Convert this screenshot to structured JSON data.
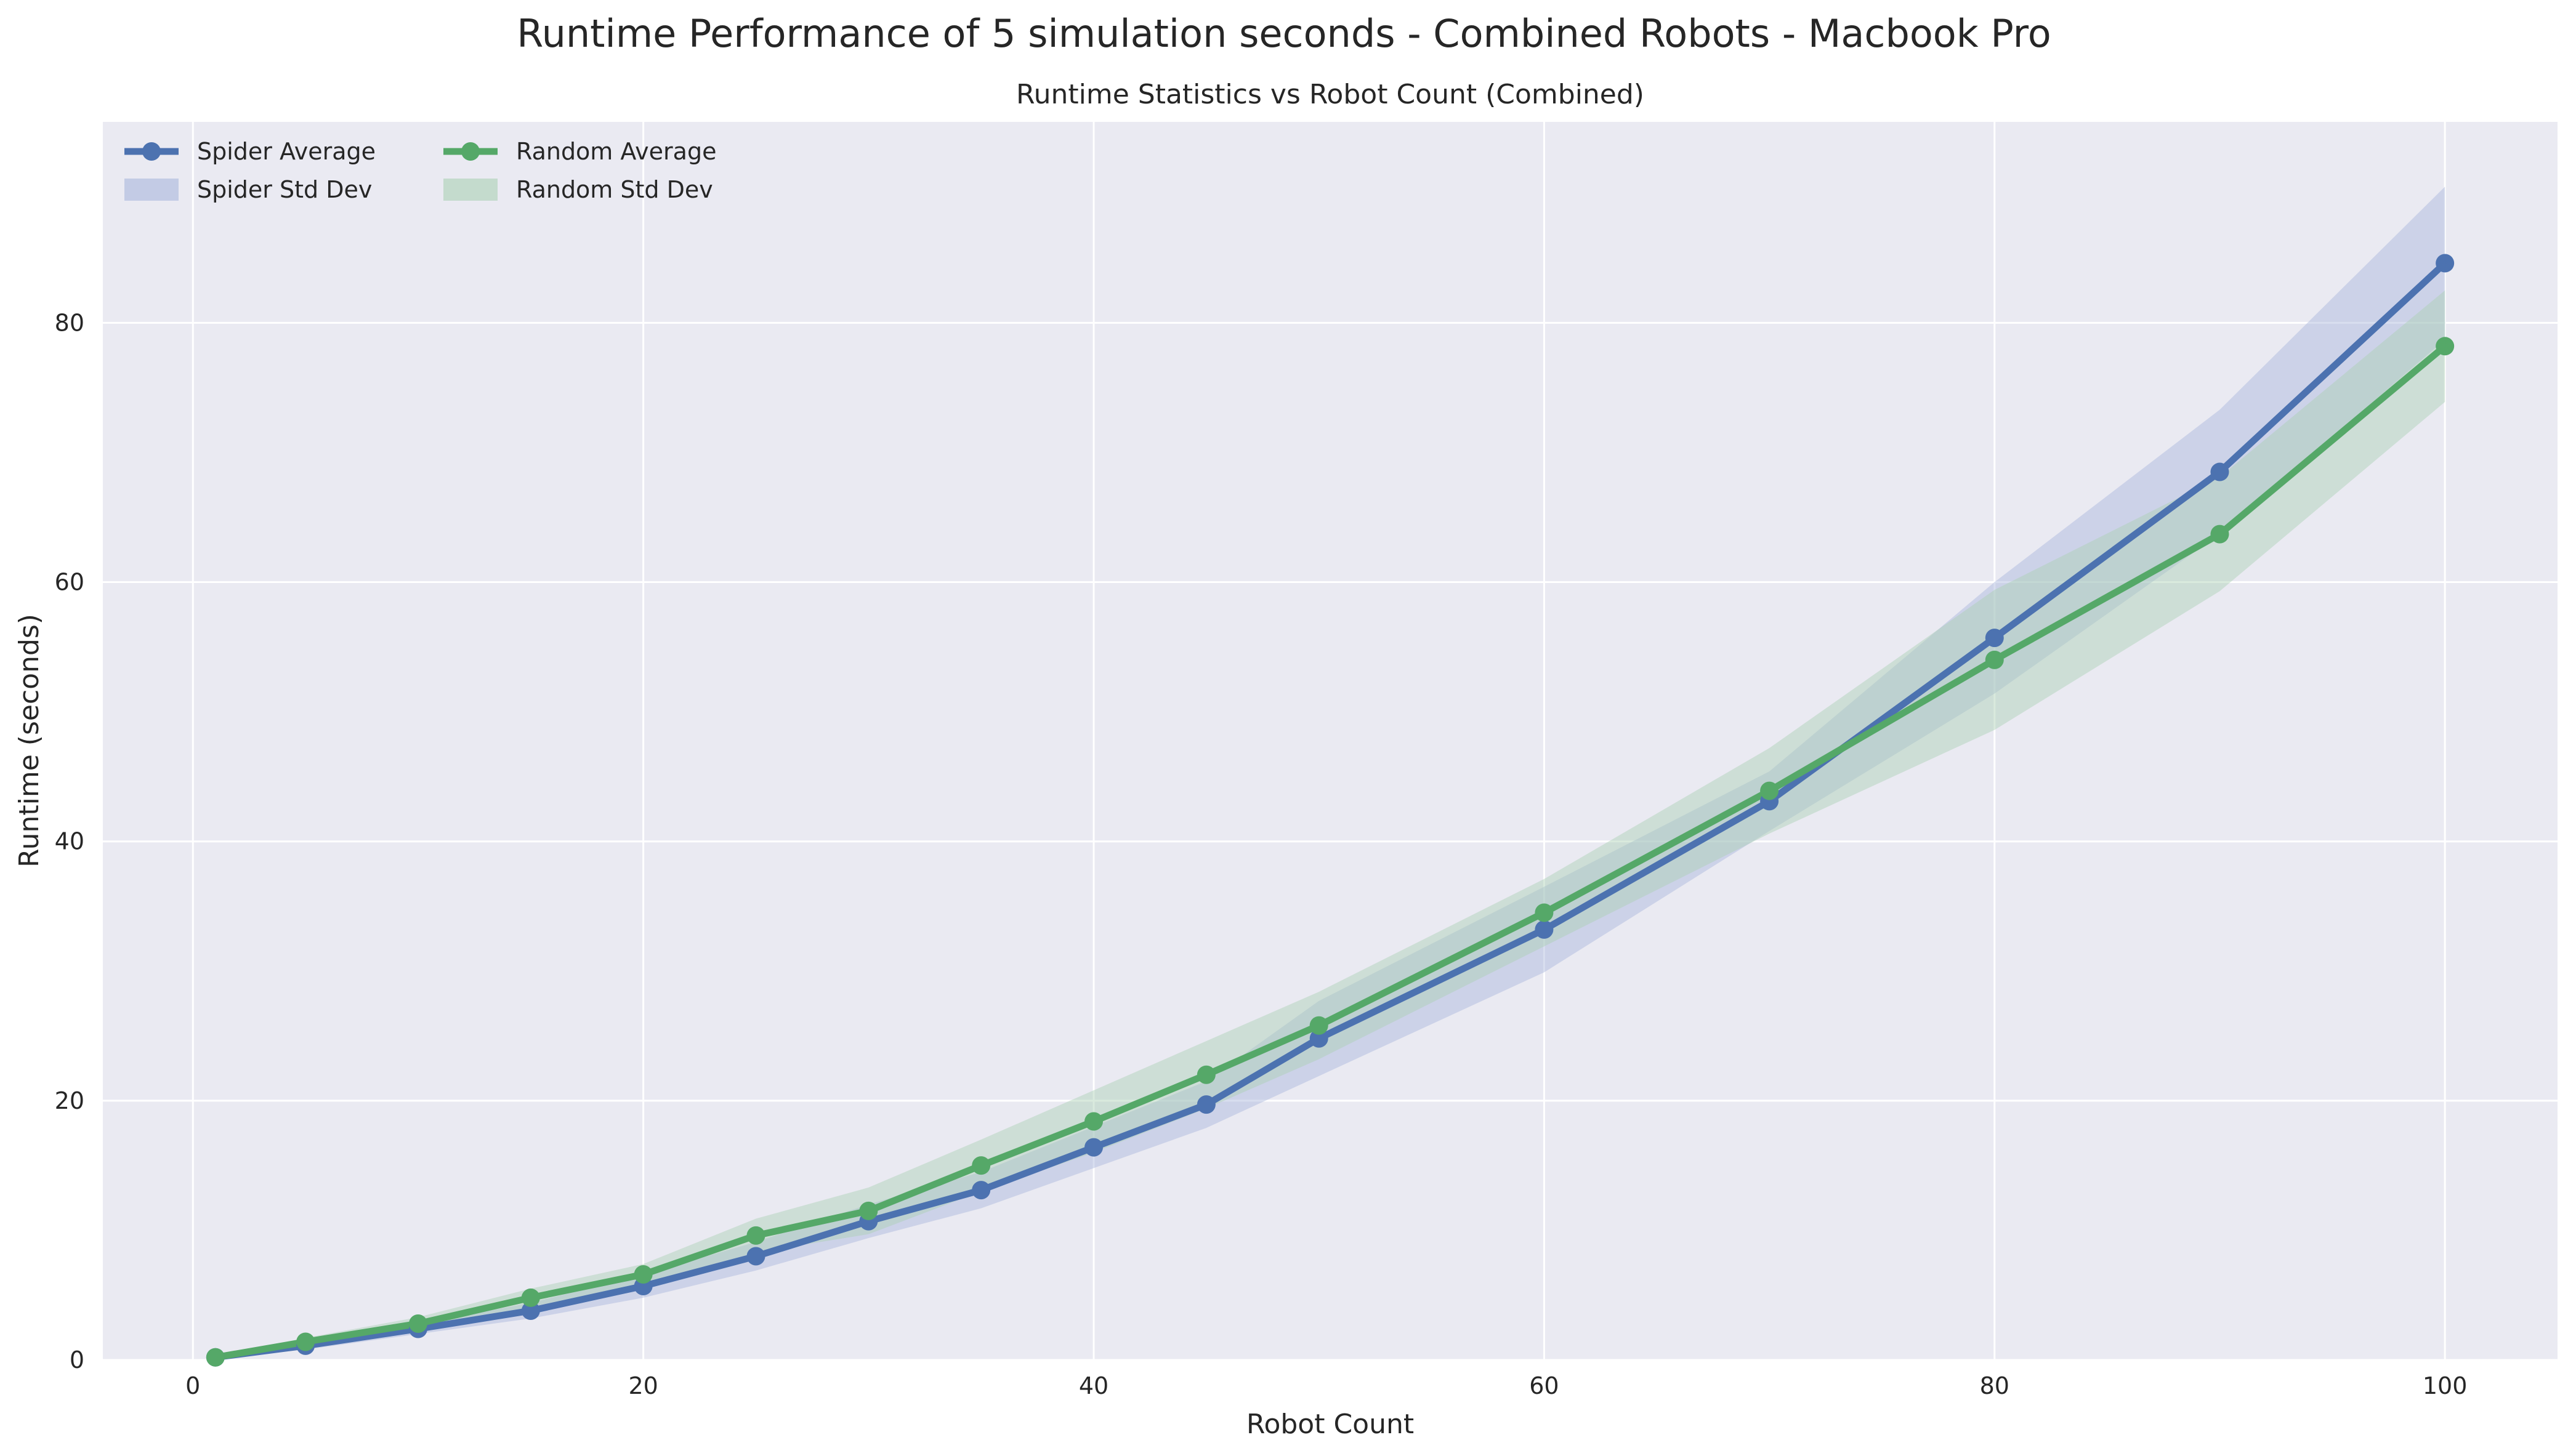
{
  "suptitle": "Runtime Performance of 5 simulation seconds - Combined Robots - Macbook Pro",
  "chart_data": {
    "type": "line",
    "title": "Runtime Statistics vs Robot Count (Combined)",
    "xlabel": "Robot Count",
    "ylabel": "Runtime (seconds)",
    "xlim": [
      -4,
      105
    ],
    "ylim": [
      0,
      95.5
    ],
    "xticks": [
      0,
      20,
      40,
      60,
      80,
      100
    ],
    "yticks": [
      0,
      20,
      40,
      60,
      80
    ],
    "grid": true,
    "legend_position": "top-left",
    "x": [
      1,
      5,
      10,
      15,
      20,
      25,
      30,
      35,
      40,
      45,
      50,
      60,
      70,
      80,
      90,
      100
    ],
    "series": [
      {
        "name": "Spider Average",
        "band_name": "Spider Std Dev",
        "color": "#4c72b0",
        "band_color": "#a9b6dc",
        "values": [
          0.2,
          1.1,
          2.4,
          3.8,
          5.7,
          8.0,
          10.7,
          13.1,
          16.4,
          19.7,
          24.8,
          33.2,
          43.1,
          55.7,
          68.5,
          84.6
        ],
        "std": [
          0.1,
          0.3,
          0.4,
          0.6,
          0.9,
          1.1,
          1.3,
          1.4,
          1.6,
          1.8,
          2.9,
          3.3,
          2.3,
          4.3,
          4.8,
          5.9
        ]
      },
      {
        "name": "Random Average",
        "band_name": "Random Std Dev",
        "color": "#55a868",
        "band_color": "#aad0b4",
        "values": [
          0.2,
          1.4,
          2.8,
          4.8,
          6.6,
          9.6,
          11.5,
          15.0,
          18.4,
          22.0,
          25.8,
          34.5,
          43.9,
          54.0,
          63.7,
          78.2
        ],
        "std": [
          0.1,
          0.3,
          0.5,
          0.7,
          0.8,
          1.3,
          1.8,
          2.0,
          2.4,
          2.6,
          2.6,
          2.6,
          3.3,
          5.4,
          4.4,
          4.3
        ]
      }
    ]
  }
}
